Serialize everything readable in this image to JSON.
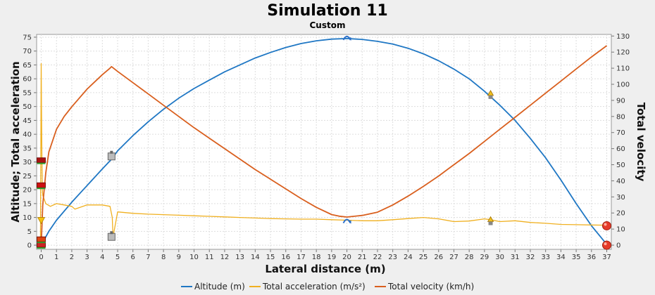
{
  "chart_data": {
    "type": "line",
    "title": "Simulation 11",
    "subtitle": "Custom",
    "xlabel": "Lateral distance (m)",
    "ylabel_left": "Altitude; Total acceleration",
    "ylabel_right": "Total velocity",
    "xlim": [
      -0.3,
      37.3
    ],
    "ylim_left": [
      -1.5,
      76
    ],
    "ylim_right": [
      -2.6,
      131
    ],
    "x_ticks": [
      0,
      1,
      2,
      3,
      4,
      5,
      6,
      7,
      8,
      9,
      10,
      11,
      12,
      13,
      14,
      15,
      16,
      17,
      18,
      19,
      20,
      21,
      22,
      23,
      24,
      25,
      26,
      27,
      28,
      29,
      30,
      31,
      32,
      33,
      34,
      35,
      36,
      37
    ],
    "y_left_ticks": [
      0,
      5,
      10,
      15,
      20,
      25,
      30,
      35,
      40,
      45,
      50,
      55,
      60,
      65,
      70,
      75
    ],
    "y_right_ticks": [
      0,
      10,
      20,
      30,
      40,
      50,
      60,
      70,
      80,
      90,
      100,
      110,
      120,
      130
    ],
    "grid": true,
    "legend_position": "bottom",
    "series": [
      {
        "name": "Altitude (m)",
        "axis": "left",
        "color": "#1f77c4",
        "x": [
          0,
          0.5,
          1,
          2,
          3,
          4,
          4.6,
          5,
          6,
          7,
          8,
          9,
          10,
          11,
          12,
          13,
          14,
          15,
          16,
          17,
          18,
          19,
          20,
          21,
          22,
          23,
          24,
          25,
          26,
          27,
          28,
          29,
          30,
          31,
          32,
          33,
          34,
          35,
          36,
          37
        ],
        "values": [
          0,
          5,
          9,
          15.5,
          21.5,
          27.5,
          31,
          34,
          39.5,
          44.5,
          49,
          53,
          56.5,
          59.5,
          62.5,
          65,
          67.5,
          69.5,
          71.3,
          72.7,
          73.7,
          74.3,
          74.5,
          74.2,
          73.5,
          72.5,
          71,
          69,
          66.5,
          63.5,
          60,
          55.5,
          50.5,
          45,
          38.5,
          31.5,
          23.5,
          15,
          7,
          0.3
        ]
      },
      {
        "name": "Total acceleration (m/s²)",
        "axis": "left",
        "color": "#f0b020",
        "x": [
          -0.05,
          0,
          0.02,
          0.05,
          0.08,
          0.1,
          0.3,
          0.6,
          1,
          1.5,
          2,
          2.2,
          3,
          4,
          4.5,
          4.65,
          4.7,
          4.8,
          5,
          6,
          7,
          8,
          9,
          10,
          11,
          12,
          13,
          14,
          15,
          16,
          17,
          18,
          19,
          20,
          21,
          22,
          23,
          24,
          25,
          26,
          27,
          28,
          29,
          29.4,
          30,
          31,
          32,
          33,
          34,
          35,
          36,
          37
        ],
        "values": [
          0,
          65.5,
          50,
          30,
          20,
          18,
          15,
          14,
          15,
          14.5,
          14,
          13,
          14.5,
          14.5,
          14,
          10,
          3,
          6,
          12,
          11.5,
          11.2,
          11,
          10.8,
          10.6,
          10.4,
          10.2,
          10,
          9.8,
          9.6,
          9.5,
          9.4,
          9.4,
          9.2,
          9,
          8.8,
          8.8,
          9.2,
          9.6,
          10,
          9.5,
          8.5,
          8.7,
          9.5,
          9.2,
          8.5,
          8.8,
          8.2,
          7.9,
          7.5,
          7.4,
          7.3,
          7.2
        ]
      },
      {
        "name": "Total velocity (km/h)",
        "axis": "right",
        "color": "#d95f1e",
        "x": [
          0,
          0.1,
          0.3,
          0.5,
          1,
          1.5,
          2,
          3,
          4,
          4.5,
          4.6,
          5,
          6,
          7,
          8,
          9,
          10,
          11,
          12,
          13,
          14,
          15,
          16,
          17,
          18,
          19,
          19.5,
          20,
          21,
          22,
          23,
          24,
          25,
          26,
          27,
          28,
          29,
          30,
          31,
          32,
          33,
          34,
          35,
          36,
          37
        ],
        "values": [
          0,
          25,
          45,
          58,
          72,
          80,
          86,
          97,
          106,
          110,
          111,
          108,
          101,
          94,
          87,
          80,
          73,
          66.5,
          60,
          53.5,
          47,
          41,
          35,
          29,
          23.5,
          19,
          18,
          17.5,
          18.5,
          20.5,
          25,
          30.5,
          36.5,
          43,
          50,
          57,
          64.5,
          72,
          79.5,
          87,
          94.5,
          102,
          109.5,
          117,
          124
        ]
      }
    ],
    "events": [
      {
        "type": "launch",
        "x": 0,
        "y": 0
      },
      {
        "type": "ignition",
        "x": 0,
        "y": 2
      },
      {
        "type": "liftoff",
        "x": 0,
        "y": 9
      },
      {
        "type": "burnout",
        "x": 0,
        "y": 21.5
      },
      {
        "type": "ejection",
        "x": 0,
        "y": 30.5
      },
      {
        "type": "motor-burnout",
        "x": 4.6,
        "y": 32
      },
      {
        "type": "motor-burnout",
        "x": 4.6,
        "y": 3
      },
      {
        "type": "apogee",
        "x": 20,
        "y": 74.5
      },
      {
        "type": "apogee",
        "x": 20,
        "y": 8.5
      },
      {
        "type": "recovery-deploy",
        "x": 29.4,
        "y": 54
      },
      {
        "type": "recovery-deploy",
        "x": 29.4,
        "y": 8.5
      },
      {
        "type": "ground-hit",
        "x": 37,
        "y": 0
      },
      {
        "type": "ground-hit",
        "x": 37,
        "y": 7
      }
    ]
  }
}
